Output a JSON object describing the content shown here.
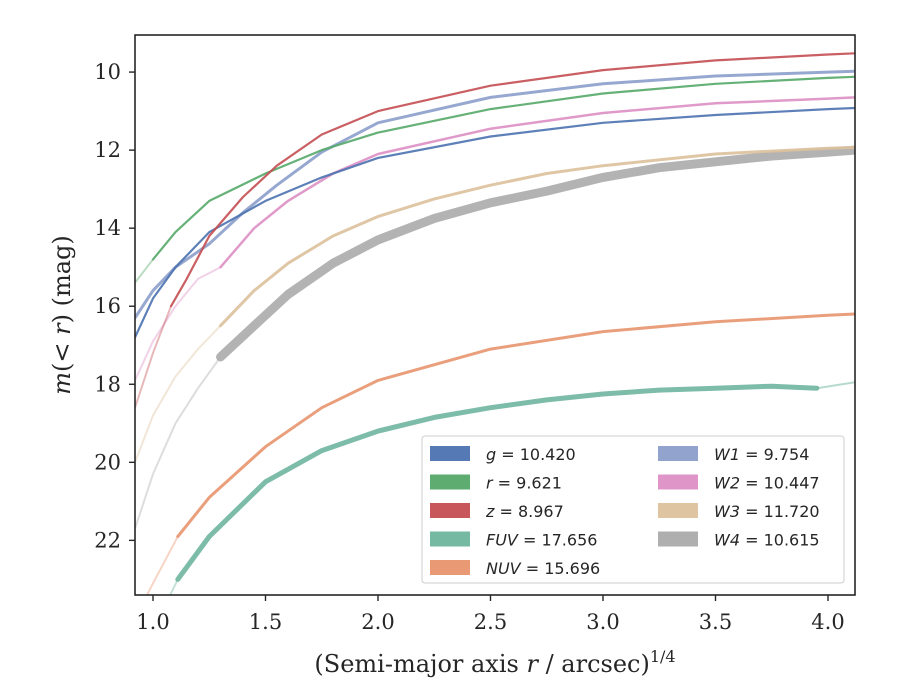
{
  "chart_data": {
    "type": "line",
    "xlabel": "(Semi-major axis r / arcsec)",
    "xlabel_parts": {
      "pre": "(Semi-major axis ",
      "var": "r",
      "post": " / arcsec)",
      "sup": "1/4"
    },
    "ylabel": "m(< r) (mag)",
    "ylabel_parts": {
      "var": "m",
      "mid": "(< ",
      "var2": "r",
      "post": ") (mag)"
    },
    "xlim": [
      0.92,
      4.12
    ],
    "ylim": [
      23.4,
      9.05
    ],
    "y_inverted": true,
    "xticks": [
      1.0,
      1.5,
      2.0,
      2.5,
      3.0,
      3.5,
      4.0
    ],
    "xtick_labels": [
      "1.0",
      "1.5",
      "2.0",
      "2.5",
      "3.0",
      "3.5",
      "4.0"
    ],
    "yticks": [
      10,
      12,
      14,
      16,
      18,
      20,
      22
    ],
    "ytick_labels": [
      "10",
      "12",
      "14",
      "16",
      "18",
      "20",
      "22"
    ],
    "grid": false,
    "legend_position": "lower-right",
    "series": [
      {
        "name": "g",
        "legend_value": "10.420",
        "color": "#4c72b0",
        "x": [
          0.92,
          1.0,
          1.1,
          1.25,
          1.5,
          1.75,
          2.0,
          2.5,
          3.0,
          3.5,
          4.0,
          4.12
        ],
        "y": [
          16.8,
          15.8,
          15.0,
          14.1,
          13.3,
          12.7,
          12.2,
          11.65,
          11.3,
          11.1,
          10.95,
          10.92
        ],
        "faded_until": null,
        "width": 2.2
      },
      {
        "name": "r",
        "legend_value": "9.621",
        "color": "#55a868",
        "x": [
          0.92,
          1.0,
          1.1,
          1.25,
          1.5,
          1.75,
          2.0,
          2.5,
          3.0,
          3.5,
          4.0,
          4.12
        ],
        "y": [
          15.4,
          14.8,
          14.1,
          13.3,
          12.6,
          12.0,
          11.55,
          10.95,
          10.55,
          10.3,
          10.15,
          10.12
        ],
        "faded_until": 1.0,
        "width": 2.2
      },
      {
        "name": "z",
        "legend_value": "8.967",
        "color": "#c44e52",
        "x": [
          0.92,
          1.0,
          1.08,
          1.15,
          1.25,
          1.4,
          1.55,
          1.75,
          2.0,
          2.5,
          3.0,
          3.5,
          4.0,
          4.12
        ],
        "y": [
          18.6,
          17.2,
          16.0,
          15.3,
          14.2,
          13.2,
          12.4,
          11.6,
          11.0,
          10.35,
          9.95,
          9.7,
          9.55,
          9.52
        ],
        "faded_until": 1.08,
        "width": 2.2
      },
      {
        "name": "FUV",
        "legend_value": "17.656",
        "color": "#6fb59e",
        "x": [
          0.92,
          1.0,
          1.11,
          1.25,
          1.5,
          1.75,
          2.0,
          2.25,
          2.5,
          2.75,
          3.0,
          3.25,
          3.5,
          3.75,
          3.95,
          4.12
        ],
        "y": [
          25.0,
          24.3,
          23.0,
          21.9,
          20.5,
          19.7,
          19.2,
          18.85,
          18.6,
          18.4,
          18.25,
          18.15,
          18.1,
          18.05,
          18.1,
          17.95
        ],
        "faded_until": 1.11,
        "width": 5.0,
        "thin_after": 3.95
      },
      {
        "name": "NUV",
        "legend_value": "15.696",
        "color": "#e8956e",
        "x": [
          0.92,
          1.0,
          1.11,
          1.25,
          1.5,
          1.75,
          2.0,
          2.5,
          3.0,
          3.5,
          4.0,
          4.12
        ],
        "y": [
          24.0,
          23.1,
          21.9,
          20.9,
          19.6,
          18.6,
          17.9,
          17.1,
          16.65,
          16.4,
          16.23,
          16.2
        ],
        "faded_until": 1.11,
        "width": 3.0
      },
      {
        "name": "W1",
        "legend_value": "9.754",
        "color": "#8c9fcb",
        "x": [
          0.92,
          1.0,
          1.1,
          1.25,
          1.4,
          1.55,
          1.75,
          2.0,
          2.5,
          3.0,
          3.5,
          4.0,
          4.12
        ],
        "y": [
          16.3,
          15.6,
          15.0,
          14.4,
          13.6,
          12.9,
          12.05,
          11.3,
          10.65,
          10.3,
          10.1,
          10.0,
          9.98
        ],
        "faded_until": null,
        "width": 3.0
      },
      {
        "name": "W2",
        "legend_value": "10.447",
        "color": "#dd8fc4",
        "x": [
          0.92,
          1.0,
          1.1,
          1.2,
          1.3,
          1.45,
          1.6,
          1.8,
          2.0,
          2.5,
          3.0,
          3.5,
          4.0,
          4.12
        ],
        "y": [
          17.9,
          16.9,
          16.0,
          15.3,
          15.0,
          14.0,
          13.3,
          12.6,
          12.1,
          11.45,
          11.05,
          10.8,
          10.68,
          10.65
        ],
        "faded_until": 1.3,
        "width": 2.5
      },
      {
        "name": "W3",
        "legend_value": "11.720",
        "color": "#dcc19c",
        "x": [
          0.92,
          1.0,
          1.1,
          1.2,
          1.3,
          1.45,
          1.6,
          1.8,
          2.0,
          2.25,
          2.5,
          2.75,
          3.0,
          3.5,
          4.0,
          4.12
        ],
        "y": [
          20.0,
          18.8,
          17.8,
          17.1,
          16.5,
          15.6,
          14.9,
          14.2,
          13.7,
          13.25,
          12.9,
          12.6,
          12.4,
          12.1,
          11.95,
          11.93
        ],
        "faded_until": 1.3,
        "width": 3.0
      },
      {
        "name": "W4",
        "legend_value": "10.615",
        "color": "#ababab",
        "x": [
          0.92,
          1.0,
          1.1,
          1.2,
          1.3,
          1.45,
          1.6,
          1.8,
          2.0,
          2.25,
          2.5,
          2.75,
          3.0,
          3.25,
          3.5,
          3.75,
          4.0,
          4.12
        ],
        "y": [
          21.7,
          20.3,
          19.0,
          18.1,
          17.3,
          16.5,
          15.7,
          14.9,
          14.3,
          13.75,
          13.35,
          13.05,
          12.7,
          12.45,
          12.3,
          12.15,
          12.05,
          12.0
        ],
        "faded_until": 1.3,
        "width": 9.0
      }
    ]
  }
}
